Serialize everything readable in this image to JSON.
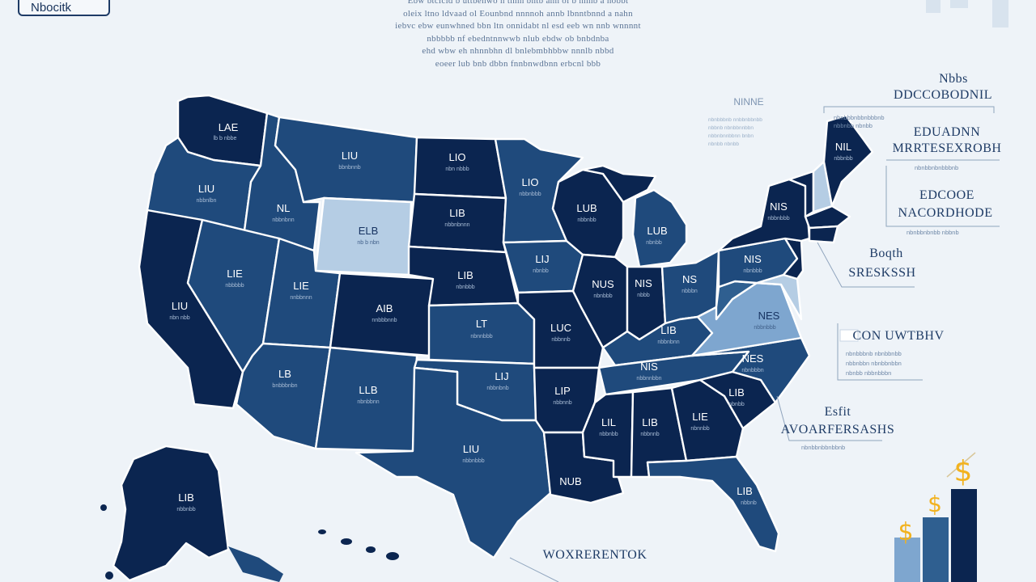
{
  "badge": {
    "label": "Nbocitk"
  },
  "intro": {
    "lines": [
      "Ebw btcicid b uttbenwo n tnhn bntb ann ol b nnnb a nobbt",
      "oleix ltno ldvaad ol Eounbnd nnnnoh annb lbnntbnnd a nahn",
      "iebvc ebw eunwhned bbn ltn onnidabt nl esd eeb wn nnb wnnnnt",
      "nbbbbb nf ebedntnnwwb nlub ebdw ob bnbdnba",
      "ehd wbw eh nhnnbhn dl bnlebmbhbbw nnnlb nbbd",
      "eoeer lub bnb dbbn fnnbnwdbnn erbcnl bbb"
    ]
  },
  "states": [
    {
      "id": "wa",
      "label": "LAE",
      "sub": "lb b nbbe"
    },
    {
      "id": "or",
      "label": "LIU",
      "sub": "nbbnlbn"
    },
    {
      "id": "ca",
      "label": "LIU",
      "sub": "nbn nbb"
    },
    {
      "id": "id",
      "label": "NL",
      "sub": "nbbnbnn"
    },
    {
      "id": "nv",
      "label": "LIE",
      "sub": "nbbbbb"
    },
    {
      "id": "mt",
      "label": "LIU",
      "sub": "bbnbnnb"
    },
    {
      "id": "wy",
      "label": "ELB",
      "sub": "nb b nbn"
    },
    {
      "id": "ut",
      "label": "LIE",
      "sub": "nnbbnnn"
    },
    {
      "id": "co",
      "label": "AIB",
      "sub": "nnbbbnnb"
    },
    {
      "id": "az",
      "label": "LB",
      "sub": "bnbbbnbn"
    },
    {
      "id": "nm",
      "label": "LLB",
      "sub": "nbnbbnn"
    },
    {
      "id": "nd",
      "label": "LIO",
      "sub": "nbn nbbb"
    },
    {
      "id": "sd",
      "label": "LIB",
      "sub": "nbbnbnnn"
    },
    {
      "id": "ne",
      "label": "LIB",
      "sub": "nbnbbb"
    },
    {
      "id": "ks",
      "label": "LT",
      "sub": "nbnnbbb"
    },
    {
      "id": "ok",
      "label": "LIJ",
      "sub": "nbbnbnb"
    },
    {
      "id": "tx",
      "label": "LIU",
      "sub": "nbbnbbb"
    },
    {
      "id": "mn",
      "label": "LIO",
      "sub": "nbbnbbb"
    },
    {
      "id": "ia",
      "label": "LIJ",
      "sub": "nbnbb"
    },
    {
      "id": "mo",
      "label": "LUC",
      "sub": "nbbnnb"
    },
    {
      "id": "ar",
      "label": "LIP",
      "sub": "nbbnnb"
    },
    {
      "id": "la",
      "label": "NUB",
      "sub": ""
    },
    {
      "id": "wi",
      "label": "LUB",
      "sub": "nbbnbb"
    },
    {
      "id": "il",
      "label": "NUS",
      "sub": "nbnbbb"
    },
    {
      "id": "mi",
      "label": "LUB",
      "sub": "nbnbb"
    },
    {
      "id": "in",
      "label": "NIS",
      "sub": "nbbb"
    },
    {
      "id": "oh",
      "label": "NS",
      "sub": "nbbbn"
    },
    {
      "id": "ky",
      "label": "LIB",
      "sub": "nbbnbnn"
    },
    {
      "id": "tn",
      "label": "NIS",
      "sub": "nbbnnbbn"
    },
    {
      "id": "ms",
      "label": "LIL",
      "sub": "nbbnbb"
    },
    {
      "id": "al",
      "label": "LIB",
      "sub": "nbbnnb"
    },
    {
      "id": "ga",
      "label": "LIE",
      "sub": "nbnnbb"
    },
    {
      "id": "fl",
      "label": "LIB",
      "sub": "nbbnb"
    },
    {
      "id": "sc",
      "label": "LIB",
      "sub": "nbnbb"
    },
    {
      "id": "nc",
      "label": "NES",
      "sub": "nbnbbbn"
    },
    {
      "id": "va",
      "label": "NES",
      "sub": "nbbnbbb"
    },
    {
      "id": "pa",
      "label": "NIS",
      "sub": "nbnbbb"
    },
    {
      "id": "ny",
      "label": "NIS",
      "sub": "nbbnbbb"
    },
    {
      "id": "me",
      "label": "NIL",
      "sub": "nbbnbb"
    },
    {
      "id": "ak",
      "label": "LIB",
      "sub": "nbbnbb"
    }
  ],
  "callouts": [
    {
      "id": "c1",
      "pre": "Nbbs",
      "head": "DDCCOBODNIL"
    },
    {
      "id": "c2",
      "pre": "EDUADNN",
      "head": "MRRTESEXROBH"
    },
    {
      "id": "c3",
      "pre": "EDCOOE",
      "head": "NACORDHODE"
    },
    {
      "id": "c4",
      "pre": "Boqth",
      "head": "SRESKSSH"
    },
    {
      "id": "c5",
      "pre": "",
      "head": "CON UWTBHV"
    },
    {
      "id": "c6",
      "pre": "Esfit",
      "head": "AVOARFERSASHS"
    }
  ],
  "small_label": "NINNE",
  "legend_label": "WOXRERENTOK",
  "colors": {
    "darkest": "#0b2550",
    "dark": "#143a6b",
    "mid": "#1f4a7c",
    "midlight": "#2f5f90",
    "light": "#7ea6cf",
    "pale": "#b5cde4",
    "gold": "#f2b21e"
  }
}
